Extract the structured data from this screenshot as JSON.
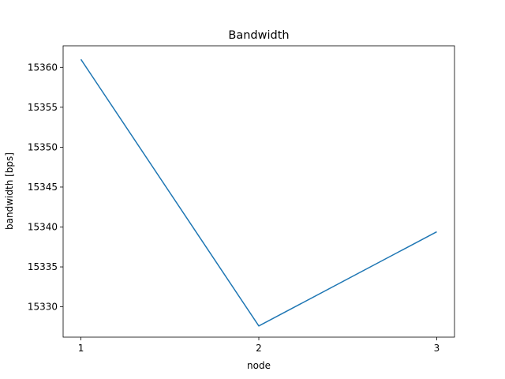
{
  "chart_data": {
    "type": "line",
    "title": "Bandwidth",
    "xlabel": "node",
    "ylabel": "bandwidth [bps]",
    "x": [
      1,
      2,
      3
    ],
    "xticks": [
      "1",
      "2",
      "3"
    ],
    "xlim": [
      0.9,
      3.1
    ],
    "yticks": [
      15330,
      15335,
      15340,
      15345,
      15350,
      15355,
      15360
    ],
    "ylim": [
      15326.2,
      15362.7
    ],
    "grid": false,
    "series": [
      {
        "values": [
          15361.0,
          15327.6,
          15339.4
        ],
        "color": "#1f77b4"
      }
    ]
  }
}
